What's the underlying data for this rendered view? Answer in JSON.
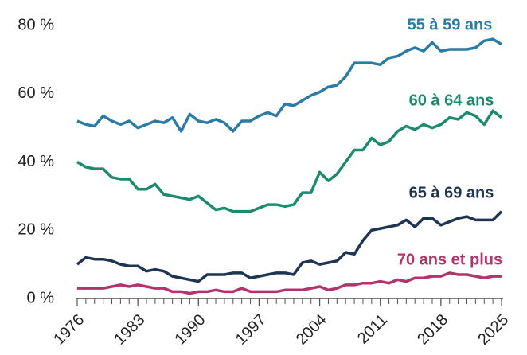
{
  "chart_data": {
    "type": "line",
    "x": [
      1976,
      1977,
      1978,
      1979,
      1980,
      1981,
      1982,
      1983,
      1984,
      1985,
      1986,
      1987,
      1988,
      1989,
      1990,
      1991,
      1992,
      1993,
      1994,
      1995,
      1996,
      1997,
      1998,
      1999,
      2000,
      2001,
      2002,
      2003,
      2004,
      2005,
      2006,
      2007,
      2008,
      2009,
      2010,
      2011,
      2012,
      2013,
      2014,
      2015,
      2016,
      2017,
      2018,
      2019,
      2020,
      2021,
      2022,
      2023,
      2024,
      2025
    ],
    "series": [
      {
        "name": "55 à 59 ans",
        "color": "#2a7ca6",
        "values": [
          52,
          51,
          50.5,
          53.5,
          52,
          51,
          52,
          50,
          51,
          52,
          51.5,
          53,
          49,
          54,
          52,
          51.5,
          52.5,
          51.5,
          49,
          52,
          52,
          53.5,
          54.5,
          53.5,
          57,
          56.5,
          58,
          59.5,
          60.5,
          62,
          62.5,
          65,
          69,
          69,
          69,
          68.5,
          70.5,
          71,
          72.5,
          73.5,
          72.5,
          75,
          72.5,
          73,
          73,
          73,
          73.5,
          75.5,
          76,
          74.5
        ]
      },
      {
        "name": "60 à 64 ans",
        "color": "#1b8a6e",
        "values": [
          40,
          38.5,
          38,
          38,
          35.5,
          35,
          35,
          32,
          32,
          33.5,
          30.5,
          30,
          29.5,
          29,
          30,
          28,
          26,
          26.5,
          25.5,
          25.5,
          25.5,
          26.5,
          27.5,
          27.5,
          27,
          27.5,
          31,
          31,
          37,
          34.5,
          36.5,
          40,
          43.5,
          43.5,
          47,
          45,
          46,
          49,
          50.5,
          49.5,
          51,
          50,
          51,
          53,
          52.5,
          54.5,
          53.5,
          51,
          55,
          53
        ]
      },
      {
        "name": "65 à 69 ans",
        "color": "#1d3553",
        "values": [
          10,
          12,
          11.5,
          11.5,
          11,
          10,
          9.5,
          9.5,
          8,
          8.5,
          8,
          6.5,
          6,
          5.5,
          5,
          7,
          7,
          7,
          7.5,
          7.5,
          6,
          6.5,
          7,
          7.5,
          7.5,
          7,
          10.5,
          11,
          10,
          10.5,
          11,
          13.5,
          13,
          17,
          20,
          20.5,
          21,
          21.5,
          23,
          21,
          23.5,
          23.5,
          21.5,
          22.5,
          23.5,
          24,
          23,
          23,
          23,
          25.5
        ]
      },
      {
        "name": "70 ans et plus",
        "color": "#b5336b",
        "values": [
          3,
          3,
          3,
          3,
          3.5,
          4,
          3.5,
          4,
          3.5,
          3,
          3,
          2,
          2,
          1.5,
          2,
          2,
          2.5,
          2,
          2,
          3,
          2,
          2,
          2,
          2,
          2.5,
          2.5,
          2.5,
          3,
          3.5,
          2.5,
          3,
          4,
          4,
          4.5,
          4.5,
          5,
          4.5,
          5.5,
          5,
          6,
          6,
          6.5,
          6.5,
          7.5,
          7,
          7,
          6.5,
          6,
          6.5,
          6.5
        ]
      }
    ],
    "xlim": [
      1976,
      2025
    ],
    "xticks": [
      1976,
      1983,
      1990,
      1997,
      2004,
      2011,
      2018,
      2025
    ],
    "ylim": [
      0,
      80
    ],
    "yticks": [
      {
        "value": 0,
        "label": "0 %"
      },
      {
        "value": 20,
        "label": "20 %"
      },
      {
        "value": 40,
        "label": "40 %"
      },
      {
        "value": 60,
        "label": "60 %"
      },
      {
        "value": 80,
        "label": "80 %"
      }
    ]
  }
}
